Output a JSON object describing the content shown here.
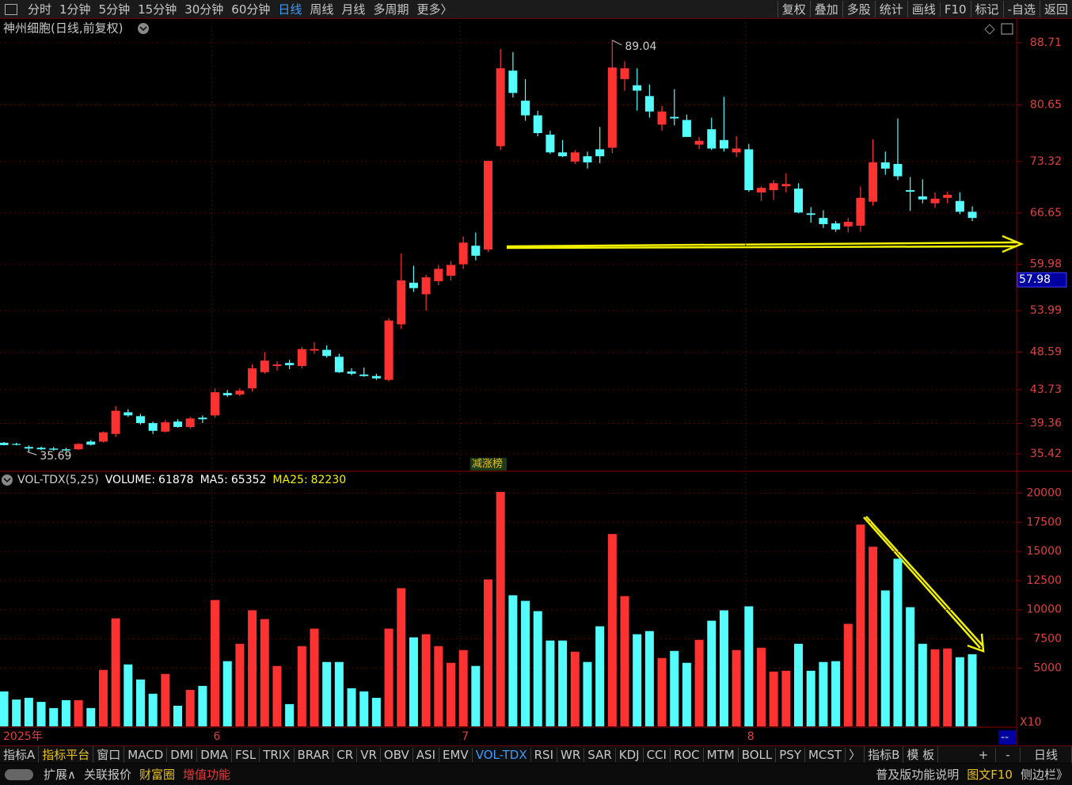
{
  "toolbar": {
    "periods": [
      {
        "label": "分时"
      },
      {
        "label": "1分钟"
      },
      {
        "label": "5分钟"
      },
      {
        "label": "15分钟"
      },
      {
        "label": "30分钟"
      },
      {
        "label": "60分钟"
      },
      {
        "label": "日线",
        "active": true
      },
      {
        "label": "周线"
      },
      {
        "label": "月线"
      },
      {
        "label": "多周期"
      },
      {
        "label": "更多〉"
      }
    ],
    "tools": [
      "复权",
      "叠加",
      "多股",
      "统计",
      "画线",
      "F10",
      "标记",
      "-自选",
      "返回"
    ]
  },
  "indicator_bar": {
    "tabs": [
      {
        "label": "指标A"
      },
      {
        "label": "指标平台",
        "color": "#e8c020"
      },
      {
        "label": "窗口"
      },
      {
        "label": "MACD"
      },
      {
        "label": "DMI"
      },
      {
        "label": "DMA"
      },
      {
        "label": "FSL"
      },
      {
        "label": "TRIX"
      },
      {
        "label": "BRAR"
      },
      {
        "label": "CR"
      },
      {
        "label": "VR"
      },
      {
        "label": "OBV"
      },
      {
        "label": "ASI"
      },
      {
        "label": "EMV"
      },
      {
        "label": "VOL-TDX",
        "color": "#3a9cff"
      },
      {
        "label": "RSI"
      },
      {
        "label": "WR"
      },
      {
        "label": "SAR"
      },
      {
        "label": "KDJ"
      },
      {
        "label": "CCI"
      },
      {
        "label": "ROC"
      },
      {
        "label": "MTM"
      },
      {
        "label": "BOLL"
      },
      {
        "label": "PSY"
      },
      {
        "label": "MCST"
      },
      {
        "label": "〉"
      },
      {
        "label": "指标B"
      },
      {
        "label": "模 板"
      }
    ],
    "right": [
      "+",
      "-"
    ],
    "period_label": "日线"
  },
  "status_bar": {
    "left": [
      {
        "label": "扩展∧"
      },
      {
        "label": "关联报价"
      },
      {
        "label": "财富圈",
        "color": "#e8c020"
      },
      {
        "label": "增值功能",
        "color": "#e03c3c"
      }
    ],
    "right": [
      {
        "label": "普及版功能说明"
      },
      {
        "label": "图文F10",
        "color": "#e8c020"
      },
      {
        "label": "侧边栏》"
      }
    ]
  },
  "chart_data": [
    {
      "type": "candlestick",
      "title": "神州细胞(日线,前复权)",
      "categories": [
        "2025年",
        null,
        null,
        null,
        null,
        null,
        null,
        null,
        null,
        null,
        null,
        null,
        null,
        null,
        null,
        null,
        null,
        "6",
        null,
        null,
        null,
        null,
        null,
        null,
        null,
        null,
        null,
        null,
        null,
        null,
        null,
        null,
        null,
        null,
        null,
        null,
        null,
        "7",
        null,
        null,
        null,
        null,
        null,
        null,
        null,
        null,
        null,
        null,
        null,
        null,
        null,
        null,
        null,
        null,
        null,
        null,
        null,
        null,
        null,
        null,
        "8",
        null,
        null,
        null,
        null,
        null,
        null,
        null,
        null,
        null,
        null,
        null,
        null,
        null,
        null,
        null,
        null,
        null,
        null
      ],
      "ohlc": [
        [
          36.85,
          36.95,
          36.5,
          36.55
        ],
        [
          36.7,
          36.85,
          36.5,
          36.6
        ],
        [
          36.3,
          36.5,
          35.69,
          36.1
        ],
        [
          36.2,
          36.35,
          35.9,
          36.0
        ],
        [
          36.1,
          36.3,
          35.8,
          35.95
        ],
        [
          36.0,
          36.2,
          35.75,
          35.85
        ],
        [
          36.0,
          36.8,
          35.9,
          36.7
        ],
        [
          37.0,
          37.2,
          36.5,
          36.6
        ],
        [
          37.0,
          38.3,
          36.9,
          38.2
        ],
        [
          38.0,
          41.6,
          37.6,
          41.0
        ],
        [
          40.8,
          41.2,
          40.2,
          40.4
        ],
        [
          40.3,
          40.6,
          39.2,
          39.4
        ],
        [
          39.4,
          39.6,
          38.0,
          38.4
        ],
        [
          38.3,
          39.8,
          38.2,
          39.5
        ],
        [
          39.6,
          39.9,
          38.8,
          38.9
        ],
        [
          38.9,
          40.2,
          38.7,
          40.0
        ],
        [
          40.1,
          40.4,
          39.4,
          39.9
        ],
        [
          40.4,
          43.9,
          40.1,
          43.4
        ],
        [
          43.3,
          43.7,
          42.8,
          43.0
        ],
        [
          43.1,
          43.9,
          42.9,
          43.6
        ],
        [
          43.9,
          47.0,
          43.5,
          46.5
        ],
        [
          46.0,
          48.6,
          45.8,
          47.5
        ],
        [
          46.8,
          47.4,
          46.2,
          47.0
        ],
        [
          47.2,
          47.6,
          46.4,
          46.9
        ],
        [
          46.8,
          49.3,
          46.5,
          49.0
        ],
        [
          48.8,
          49.9,
          48.4,
          49.0
        ],
        [
          48.9,
          49.5,
          47.9,
          48.1
        ],
        [
          48.0,
          48.4,
          45.9,
          46.0
        ],
        [
          46.1,
          46.5,
          45.6,
          45.8
        ],
        [
          45.7,
          46.6,
          45.4,
          45.5
        ],
        [
          45.5,
          45.8,
          45.0,
          45.2
        ],
        [
          45.0,
          53.0,
          44.8,
          52.7
        ],
        [
          52.2,
          61.4,
          51.6,
          57.9
        ],
        [
          57.6,
          59.8,
          56.4,
          56.9
        ],
        [
          56.1,
          58.6,
          54.0,
          58.3
        ],
        [
          57.8,
          59.9,
          57.3,
          59.4
        ],
        [
          58.5,
          60.4,
          57.9,
          59.9
        ],
        [
          60.0,
          63.6,
          59.4,
          62.8
        ],
        [
          62.4,
          64.1,
          60.5,
          61.1
        ],
        [
          61.9,
          73.4,
          61.6,
          73.4
        ],
        [
          75.3,
          87.9,
          74.8,
          85.4
        ],
        [
          85.1,
          87.5,
          81.6,
          82.2
        ],
        [
          81.2,
          84.0,
          78.6,
          79.3
        ],
        [
          79.3,
          79.9,
          76.6,
          77.0
        ],
        [
          76.8,
          77.3,
          74.3,
          74.5
        ],
        [
          74.5,
          76.1,
          73.9,
          74.0
        ],
        [
          73.3,
          74.8,
          73.0,
          74.5
        ],
        [
          74.0,
          74.6,
          72.4,
          73.2
        ],
        [
          74.9,
          77.8,
          73.1,
          74.0
        ],
        [
          75.1,
          89.04,
          74.4,
          85.5
        ],
        [
          84.0,
          86.3,
          82.5,
          85.4
        ],
        [
          83.2,
          85.4,
          79.9,
          82.5
        ],
        [
          81.8,
          83.3,
          79.0,
          79.8
        ],
        [
          78.1,
          80.5,
          77.3,
          79.8
        ],
        [
          79.1,
          82.7,
          78.0,
          78.9
        ],
        [
          78.7,
          79.4,
          76.5,
          76.5
        ],
        [
          75.5,
          76.5,
          74.9,
          76.0
        ],
        [
          77.5,
          79.0,
          74.8,
          75.0
        ],
        [
          76.1,
          81.7,
          74.6,
          75.0
        ],
        [
          74.5,
          76.6,
          73.9,
          75.0
        ],
        [
          74.9,
          75.6,
          69.4,
          69.6
        ],
        [
          69.3,
          70.1,
          68.2,
          69.9
        ],
        [
          69.6,
          70.9,
          68.3,
          70.5
        ],
        [
          70.1,
          71.8,
          69.3,
          70.4
        ],
        [
          69.8,
          70.5,
          66.6,
          66.7
        ],
        [
          66.6,
          67.4,
          65.4,
          66.4
        ],
        [
          66.0,
          67.0,
          64.7,
          65.2
        ],
        [
          65.3,
          65.6,
          64.2,
          64.5
        ],
        [
          64.9,
          66.0,
          64.1,
          65.5
        ],
        [
          65.0,
          70.1,
          64.2,
          68.6
        ],
        [
          68.1,
          76.2,
          67.6,
          73.2
        ],
        [
          73.2,
          74.6,
          71.6,
          72.4
        ],
        [
          73.0,
          78.9,
          70.9,
          71.4
        ],
        [
          69.6,
          71.3,
          66.9,
          69.4
        ],
        [
          68.8,
          71.0,
          67.9,
          68.4
        ],
        [
          67.9,
          69.3,
          67.3,
          68.5
        ],
        [
          68.6,
          69.4,
          67.9,
          69.0
        ],
        [
          68.2,
          69.3,
          66.5,
          66.8
        ],
        [
          66.8,
          67.5,
          65.6,
          66.0
        ]
      ],
      "up_color": "#ff3232",
      "down_color": "#54fcfc",
      "ylim": [
        33.25,
        91.38
      ],
      "yticks": [
        35.42,
        39.36,
        43.73,
        48.59,
        53.99,
        59.98,
        66.65,
        73.32,
        80.65,
        88.71
      ],
      "price_marker": 57.98,
      "tag_label": "减涨榜",
      "grid": true
    },
    {
      "type": "bar",
      "title": "VOL-TDX(5,25)",
      "indicators": [
        {
          "name": "VOLUME:",
          "value": 61878,
          "color": "#ffffff"
        },
        {
          "name": "MA5:",
          "value": 65352,
          "color": "#ffffff"
        },
        {
          "name": "MA25:",
          "value": 82230,
          "color": "#f0f000"
        }
      ],
      "values": [
        3000,
        2300,
        2450,
        2100,
        1570,
        2250,
        2250,
        1570,
        4840,
        9260,
        5310,
        4020,
        2800,
        4500,
        1770,
        3130,
        3470,
        10830,
        5590,
        7080,
        9950,
        9200,
        5180,
        1910,
        6880,
        8380,
        5520,
        5520,
        3270,
        3000,
        2450,
        8380,
        11850,
        7630,
        7900,
        6880,
        5450,
        6540,
        5180,
        12600,
        20100,
        11240,
        10760,
        9880,
        7360,
        7360,
        6400,
        5520,
        8580,
        16490,
        11170,
        7900,
        8170,
        5860,
        6470,
        5450,
        7420,
        9060,
        9950,
        6540,
        10290,
        6740,
        4700,
        4770,
        7080,
        4770,
        5520,
        5590,
        8790,
        17300,
        15400,
        11650,
        14370,
        10220,
        7080,
        6610,
        6680,
        5930,
        6188
      ],
      "unit_label": "X10",
      "empty_label": "--",
      "ylim": [
        0,
        21730
      ],
      "yticks": [
        5000,
        7500,
        10000,
        12500,
        15000,
        17500,
        20000
      ]
    }
  ]
}
